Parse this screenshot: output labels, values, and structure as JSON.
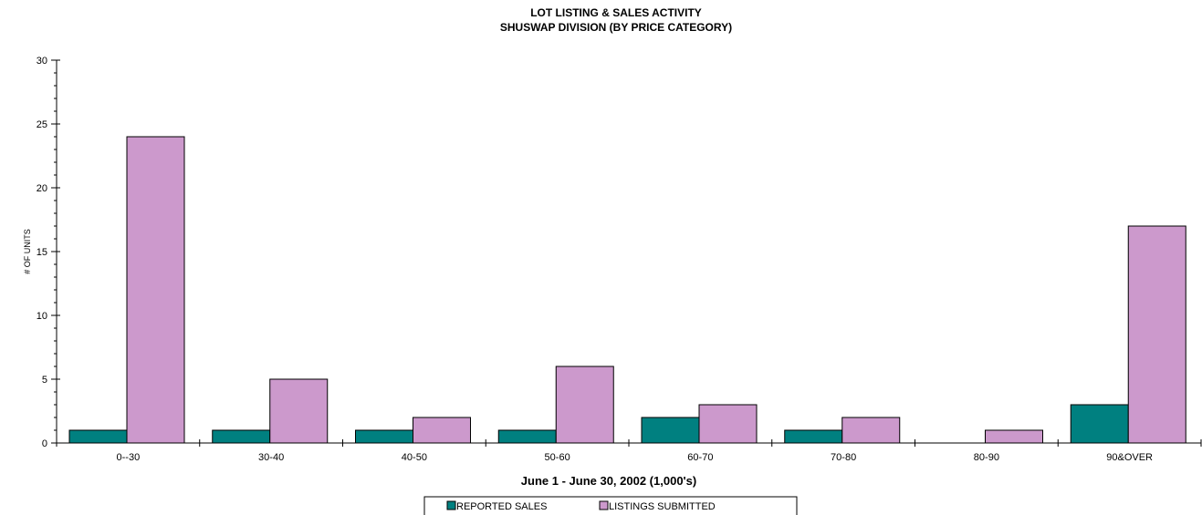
{
  "chart_data": {
    "type": "bar",
    "title": "LOT LISTING & SALES ACTIVITY",
    "subtitle": "SHUSWAP DIVISION (BY PRICE CATEGORY)",
    "xlabel": "June 1 - June 30, 2002 (1,000's)",
    "ylabel": "# OF UNITS",
    "ylim": [
      0,
      30
    ],
    "yticks": [
      0,
      5,
      10,
      15,
      20,
      25,
      30
    ],
    "categories": [
      "0--30",
      "30-40",
      "40-50",
      "50-60",
      "60-70",
      "70-80",
      "80-90",
      "90&OVER"
    ],
    "series": [
      {
        "name": "REPORTED SALES",
        "color": "#008080",
        "values": [
          1,
          1,
          1,
          1,
          2,
          1,
          0,
          3
        ]
      },
      {
        "name": "LISTINGS SUBMITTED",
        "color": "#CC99CC",
        "values": [
          24,
          5,
          2,
          6,
          3,
          2,
          1,
          17
        ]
      }
    ],
    "legend_position": "bottom",
    "grid": false
  }
}
